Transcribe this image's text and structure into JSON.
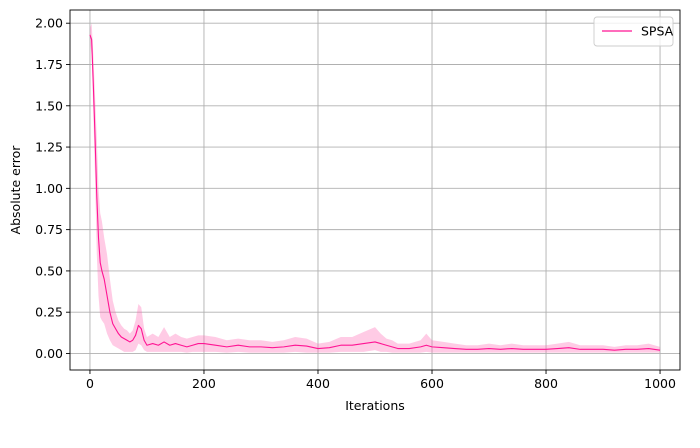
{
  "chart_data": {
    "type": "line",
    "title": "",
    "xlabel": "Iterations",
    "ylabel": "Absolute error",
    "xlim": [
      -35,
      1035
    ],
    "ylim": [
      -0.1,
      2.08
    ],
    "xticks": [
      0,
      200,
      400,
      600,
      800,
      1000
    ],
    "xtick_labels": [
      "0",
      "200",
      "400",
      "600",
      "800",
      "1000"
    ],
    "yticks": [
      0.0,
      0.25,
      0.5,
      0.75,
      1.0,
      1.25,
      1.5,
      1.75,
      2.0
    ],
    "ytick_labels": [
      "0.00",
      "0.25",
      "0.50",
      "0.75",
      "1.00",
      "1.25",
      "1.50",
      "1.75",
      "2.00"
    ],
    "grid": true,
    "legend": {
      "position": "top-right"
    },
    "colors": {
      "line": "#ff1493",
      "band": "#ff69b4",
      "grid": "#b0b0b0",
      "axis": "#000000"
    },
    "series": [
      {
        "name": "SPSA",
        "x": [
          0,
          3,
          6,
          9,
          12,
          15,
          18,
          21,
          25,
          30,
          35,
          40,
          45,
          50,
          55,
          60,
          65,
          70,
          75,
          80,
          85,
          90,
          95,
          100,
          110,
          120,
          130,
          140,
          150,
          160,
          170,
          180,
          190,
          200,
          220,
          240,
          260,
          280,
          300,
          320,
          340,
          360,
          380,
          400,
          420,
          440,
          460,
          480,
          500,
          510,
          520,
          530,
          540,
          560,
          580,
          590,
          600,
          620,
          640,
          660,
          680,
          700,
          720,
          740,
          760,
          780,
          800,
          820,
          840,
          860,
          880,
          900,
          920,
          940,
          960,
          980,
          1000
        ],
        "y": [
          1.93,
          1.9,
          1.62,
          1.3,
          0.95,
          0.7,
          0.55,
          0.5,
          0.45,
          0.35,
          0.25,
          0.18,
          0.15,
          0.12,
          0.1,
          0.09,
          0.08,
          0.07,
          0.08,
          0.11,
          0.17,
          0.15,
          0.08,
          0.05,
          0.06,
          0.05,
          0.07,
          0.05,
          0.06,
          0.05,
          0.04,
          0.05,
          0.06,
          0.06,
          0.05,
          0.04,
          0.05,
          0.04,
          0.04,
          0.035,
          0.04,
          0.05,
          0.045,
          0.03,
          0.035,
          0.05,
          0.05,
          0.06,
          0.07,
          0.06,
          0.05,
          0.04,
          0.03,
          0.03,
          0.04,
          0.05,
          0.04,
          0.035,
          0.03,
          0.025,
          0.025,
          0.03,
          0.025,
          0.03,
          0.025,
          0.025,
          0.025,
          0.03,
          0.035,
          0.025,
          0.025,
          0.025,
          0.02,
          0.025,
          0.025,
          0.03,
          0.02
        ],
        "lower": [
          1.9,
          1.8,
          1.45,
          1.05,
          0.6,
          0.35,
          0.22,
          0.2,
          0.18,
          0.12,
          0.08,
          0.05,
          0.04,
          0.03,
          0.02,
          0.01,
          0.01,
          0.01,
          0.01,
          0.02,
          0.06,
          0.05,
          0.02,
          0.01,
          0.01,
          0.01,
          0.01,
          0.01,
          0.01,
          0.01,
          0.005,
          0.01,
          0.01,
          0.01,
          0.01,
          0.005,
          0.01,
          0.005,
          0.005,
          0.005,
          0.005,
          0.01,
          0.005,
          0.005,
          0.005,
          0.01,
          0.01,
          0.01,
          0.02,
          0.01,
          0.01,
          0.005,
          0.005,
          0.005,
          0.005,
          0.01,
          0.005,
          0.005,
          0.005,
          0.005,
          0.005,
          0.005,
          0.005,
          0.005,
          0.005,
          0.005,
          0.005,
          0.005,
          0.005,
          0.005,
          0.005,
          0.005,
          0.005,
          0.005,
          0.005,
          0.005,
          0.005
        ],
        "upper": [
          1.97,
          2.0,
          1.8,
          1.55,
          1.3,
          1.0,
          0.85,
          0.8,
          0.7,
          0.6,
          0.45,
          0.32,
          0.25,
          0.2,
          0.17,
          0.15,
          0.14,
          0.12,
          0.14,
          0.2,
          0.3,
          0.28,
          0.15,
          0.1,
          0.12,
          0.1,
          0.16,
          0.1,
          0.12,
          0.1,
          0.09,
          0.1,
          0.11,
          0.11,
          0.1,
          0.08,
          0.09,
          0.08,
          0.08,
          0.07,
          0.08,
          0.1,
          0.09,
          0.06,
          0.07,
          0.1,
          0.1,
          0.13,
          0.16,
          0.12,
          0.09,
          0.08,
          0.06,
          0.06,
          0.08,
          0.12,
          0.08,
          0.07,
          0.06,
          0.05,
          0.05,
          0.06,
          0.05,
          0.06,
          0.05,
          0.05,
          0.05,
          0.06,
          0.07,
          0.05,
          0.05,
          0.05,
          0.04,
          0.05,
          0.05,
          0.06,
          0.04
        ]
      }
    ]
  }
}
